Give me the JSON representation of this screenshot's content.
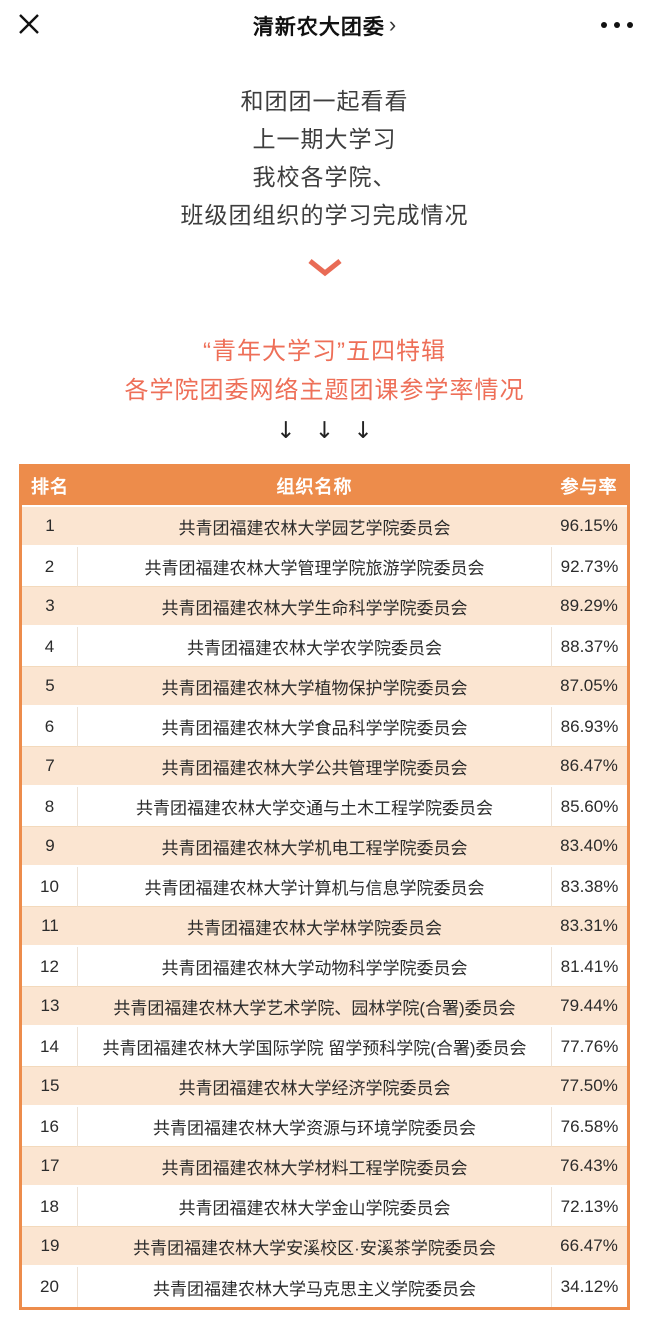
{
  "topbar": {
    "title": "清新农大团委",
    "title_chevron": "›"
  },
  "intro": {
    "lines": [
      "和团团一起看看",
      "上一期大学习",
      "我校各学院、",
      "班级团组织的学习完成情况"
    ]
  },
  "headline": {
    "color": "#ee6f58",
    "lines": [
      "“青年大学习”五四特辑",
      "各学院团委网络主题团课参学率情况"
    ]
  },
  "arrows_text": "↓ ↓ ↓",
  "table": {
    "header_bg": "#ed8c4b",
    "alt_row_bg": "#fbe5d1",
    "headers": [
      "排名",
      "组织名称",
      "参与率"
    ],
    "rows": [
      {
        "rank": "1",
        "org": "共青团福建农林大学园艺学院委员会",
        "rate": "96.15%"
      },
      {
        "rank": "2",
        "org": "共青团福建农林大学管理学院旅游学院委员会",
        "rate": "92.73%"
      },
      {
        "rank": "3",
        "org": "共青团福建农林大学生命科学学院委员会",
        "rate": "89.29%"
      },
      {
        "rank": "4",
        "org": "共青团福建农林大学农学院委员会",
        "rate": "88.37%"
      },
      {
        "rank": "5",
        "org": "共青团福建农林大学植物保护学院委员会",
        "rate": "87.05%"
      },
      {
        "rank": "6",
        "org": "共青团福建农林大学食品科学学院委员会",
        "rate": "86.93%"
      },
      {
        "rank": "7",
        "org": "共青团福建农林大学公共管理学院委员会",
        "rate": "86.47%"
      },
      {
        "rank": "8",
        "org": "共青团福建农林大学交通与土木工程学院委员会",
        "rate": "85.60%"
      },
      {
        "rank": "9",
        "org": "共青团福建农林大学机电工程学院委员会",
        "rate": "83.40%"
      },
      {
        "rank": "10",
        "org": "共青团福建农林大学计算机与信息学院委员会",
        "rate": "83.38%"
      },
      {
        "rank": "11",
        "org": "共青团福建农林大学林学院委员会",
        "rate": "83.31%"
      },
      {
        "rank": "12",
        "org": "共青团福建农林大学动物科学学院委员会",
        "rate": "81.41%"
      },
      {
        "rank": "13",
        "org": "共青团福建农林大学艺术学院、园林学院(合署)委员会",
        "rate": "79.44%"
      },
      {
        "rank": "14",
        "org": "共青团福建农林大学国际学院 留学预科学院(合署)委员会",
        "rate": "77.76%"
      },
      {
        "rank": "15",
        "org": "共青团福建农林大学经济学院委员会",
        "rate": "77.50%"
      },
      {
        "rank": "16",
        "org": "共青团福建农林大学资源与环境学院委员会",
        "rate": "76.58%"
      },
      {
        "rank": "17",
        "org": "共青团福建农林大学材料工程学院委员会",
        "rate": "76.43%"
      },
      {
        "rank": "18",
        "org": "共青团福建农林大学金山学院委员会",
        "rate": "72.13%"
      },
      {
        "rank": "19",
        "org": "共青团福建农林大学安溪校区·安溪茶学院委员会",
        "rate": "66.47%"
      },
      {
        "rank": "20",
        "org": "共青团福建农林大学马克思主义学院委员会",
        "rate": "34.12%"
      }
    ]
  }
}
